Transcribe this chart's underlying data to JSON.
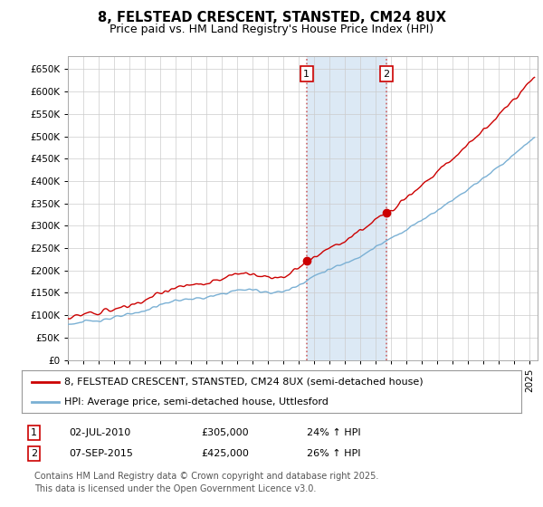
{
  "title": "8, FELSTEAD CRESCENT, STANSTED, CM24 8UX",
  "subtitle": "Price paid vs. HM Land Registry's House Price Index (HPI)",
  "ylim": [
    0,
    680000
  ],
  "yticks": [
    0,
    50000,
    100000,
    150000,
    200000,
    250000,
    300000,
    350000,
    400000,
    450000,
    500000,
    550000,
    600000,
    650000
  ],
  "ytick_labels": [
    "£0",
    "£50K",
    "£100K",
    "£150K",
    "£200K",
    "£250K",
    "£300K",
    "£350K",
    "£400K",
    "£450K",
    "£500K",
    "£550K",
    "£600K",
    "£650K"
  ],
  "line1_color": "#cc0000",
  "line2_color": "#7ab0d4",
  "transaction1_year": 2010.5,
  "transaction1_price": 305000,
  "transaction2_year": 2015.67,
  "transaction2_price": 425000,
  "vline_color": "#cc6666",
  "vline_style": ":",
  "shaded_color": "#dce9f5",
  "legend_label1": "8, FELSTEAD CRESCENT, STANSTED, CM24 8UX (semi-detached house)",
  "legend_label2": "HPI: Average price, semi-detached house, Uttlesford",
  "footer": "Contains HM Land Registry data © Crown copyright and database right 2025.\nThis data is licensed under the Open Government Licence v3.0.",
  "title_fontsize": 10.5,
  "subtitle_fontsize": 9,
  "tick_fontsize": 7.5,
  "legend_fontsize": 8,
  "ann_fontsize": 8,
  "footer_fontsize": 7,
  "bg_color": "#ffffff",
  "grid_color": "#cccccc",
  "xlim_left": 1995,
  "xlim_right": 2025.5
}
